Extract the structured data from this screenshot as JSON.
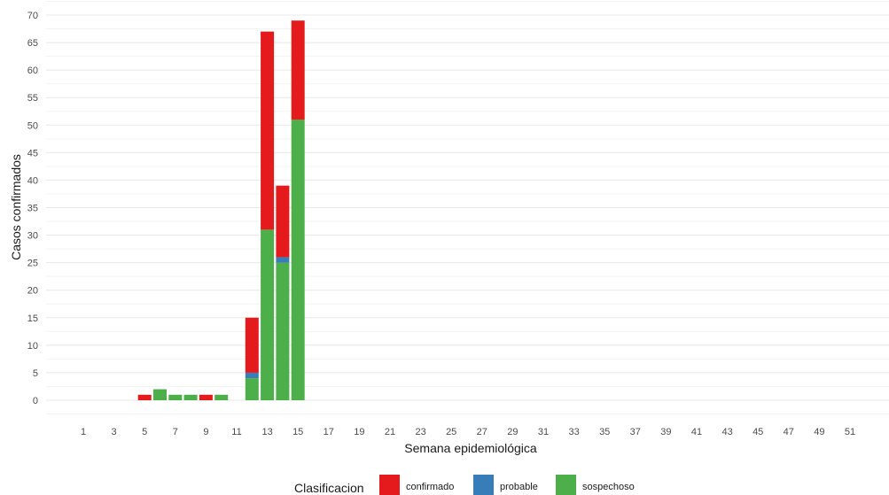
{
  "chart_data": {
    "type": "bar",
    "stacked": true,
    "xlabel": "Semana epidemiológica",
    "ylabel": "Casos confirmados",
    "ylim": [
      0,
      70
    ],
    "yticks": [
      0,
      5,
      10,
      15,
      20,
      25,
      30,
      35,
      40,
      45,
      50,
      55,
      60,
      65,
      70
    ],
    "xlim": [
      1,
      52
    ],
    "xticks": [
      1,
      3,
      5,
      7,
      9,
      11,
      13,
      15,
      17,
      19,
      21,
      23,
      25,
      27,
      29,
      31,
      33,
      35,
      37,
      39,
      41,
      43,
      45,
      47,
      49,
      51
    ],
    "grid": true,
    "legend": {
      "title": "Clasificacion",
      "placement": "bottom",
      "entries": [
        "confirmado",
        "probable",
        "sospechoso"
      ]
    },
    "colors": {
      "confirmado": "#e41a1c",
      "probable": "#377eb8",
      "sospechoso": "#4daf4a"
    },
    "weeks": [
      5,
      6,
      7,
      8,
      9,
      10,
      12,
      13,
      14,
      15
    ],
    "series": [
      {
        "name": "sospechoso",
        "values": [
          0,
          2,
          1,
          1,
          0,
          1,
          4,
          31,
          25,
          51
        ]
      },
      {
        "name": "probable",
        "values": [
          0,
          0,
          0,
          0,
          0,
          0,
          1,
          0,
          1,
          0
        ]
      },
      {
        "name": "confirmado",
        "values": [
          1,
          0,
          0,
          0,
          1,
          0,
          10,
          36,
          13,
          18
        ]
      }
    ]
  }
}
